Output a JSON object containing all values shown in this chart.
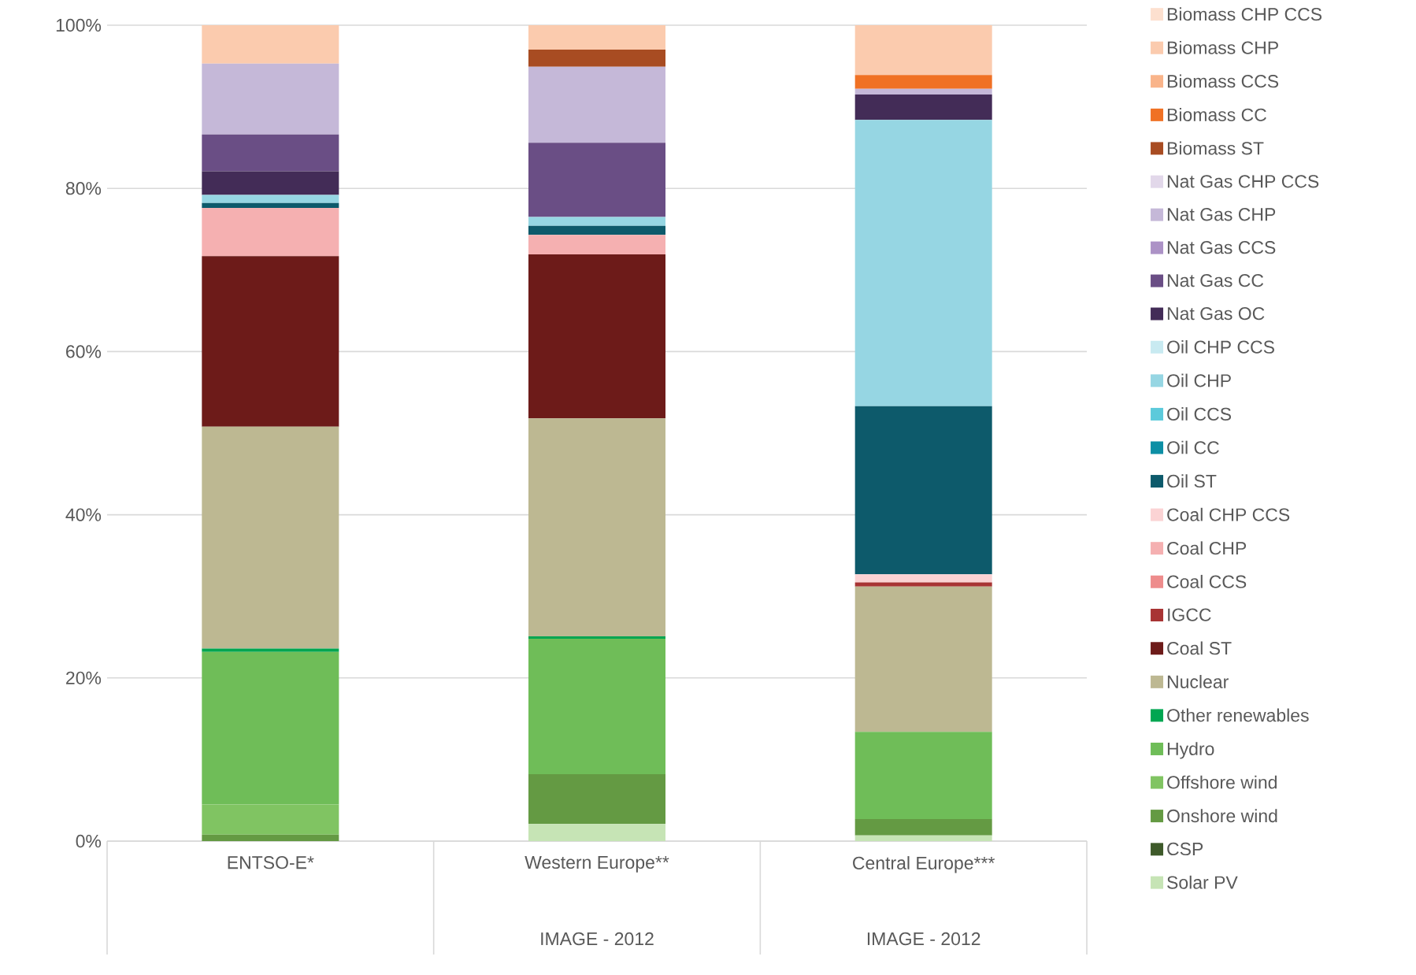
{
  "chart_data": {
    "type": "bar",
    "stacked": true,
    "categories": [
      "ENTSO-E*",
      "Western Europe**",
      "Central Europe***"
    ],
    "annotations": [
      "IMAGE - 2012",
      "IMAGE - 2012"
    ],
    "ylim": [
      0,
      100
    ],
    "yticks": [
      {
        "value": 0,
        "label": "0%"
      },
      {
        "value": 20,
        "label": "20%"
      },
      {
        "value": 40,
        "label": "40%"
      },
      {
        "value": 60,
        "label": "60%"
      },
      {
        "value": 80,
        "label": "80%"
      },
      {
        "value": 100,
        "label": "100%"
      }
    ],
    "grid": "y",
    "legend": "right",
    "series": [
      {
        "name": "Solar PV",
        "color": "#c6e4b5",
        "values": [
          0,
          2.1,
          0.7
        ]
      },
      {
        "name": "CSP",
        "color": "#3e5a2a",
        "values": [
          0,
          0,
          0
        ]
      },
      {
        "name": "Onshore wind",
        "color": "#649a43",
        "values": [
          0.8,
          6.1,
          2.0
        ]
      },
      {
        "name": "Offshore wind",
        "color": "#80c462",
        "values": [
          3.7,
          0,
          0
        ]
      },
      {
        "name": "Hydro",
        "color": "#6fbd58",
        "values": [
          18.7,
          16.6,
          10.7
        ]
      },
      {
        "name": "Other renewables",
        "color": "#00a651",
        "values": [
          0.4,
          0.3,
          0
        ]
      },
      {
        "name": "Nuclear",
        "color": "#bdb892",
        "values": [
          27.2,
          26.7,
          17.8
        ]
      },
      {
        "name": "Coal ST",
        "color": "#6d1b19",
        "values": [
          20.9,
          20.1,
          0
        ]
      },
      {
        "name": "IGCC",
        "color": "#a83434",
        "values": [
          0,
          0,
          0.5
        ]
      },
      {
        "name": "Coal CCS",
        "color": "#ee8c8c",
        "values": [
          0,
          0,
          0
        ]
      },
      {
        "name": "Coal CHP",
        "color": "#f5b0b1",
        "values": [
          5.9,
          2.4,
          0
        ]
      },
      {
        "name": "Coal CHP CCS",
        "color": "#fbd3d4",
        "values": [
          0,
          0,
          1.0
        ]
      },
      {
        "name": "Oil ST",
        "color": "#0d5a6b",
        "values": [
          0.6,
          1.1,
          20.6
        ]
      },
      {
        "name": "Oil CC",
        "color": "#0d8fa5",
        "values": [
          0,
          0,
          0
        ]
      },
      {
        "name": "Oil CCS",
        "color": "#5ccadb",
        "values": [
          0,
          0,
          0
        ]
      },
      {
        "name": "Oil CHP",
        "color": "#96d6e3",
        "values": [
          1.0,
          1.1,
          35.1
        ]
      },
      {
        "name": "Oil CHP CCS",
        "color": "#c8eaf1",
        "values": [
          0,
          0,
          0
        ]
      },
      {
        "name": "Nat Gas OC",
        "color": "#432c57",
        "values": [
          2.9,
          0,
          3.1
        ]
      },
      {
        "name": "Nat Gas CC",
        "color": "#6a4e85",
        "values": [
          4.5,
          9.1,
          0
        ]
      },
      {
        "name": "Nat Gas CCS",
        "color": "#ac92c6",
        "values": [
          0,
          0,
          0
        ]
      },
      {
        "name": "Nat Gas CHP",
        "color": "#c5b8d8",
        "values": [
          8.7,
          9.3,
          0.7
        ]
      },
      {
        "name": "Nat Gas CHP CCS",
        "color": "#e2d8ea",
        "values": [
          0,
          0,
          0
        ]
      },
      {
        "name": "Biomass ST",
        "color": "#a84c22",
        "values": [
          0,
          2.1,
          0
        ]
      },
      {
        "name": "Biomass CC",
        "color": "#f07124",
        "values": [
          0,
          0,
          1.7
        ]
      },
      {
        "name": "Biomass CCS",
        "color": "#f9b48a",
        "values": [
          0,
          0,
          0
        ]
      },
      {
        "name": "Biomass CHP",
        "color": "#fbcbae",
        "values": [
          4.7,
          3.0,
          6.1
        ]
      },
      {
        "name": "Biomass CHP CCS",
        "color": "#fde0cf",
        "values": [
          0,
          0,
          0
        ]
      }
    ]
  }
}
